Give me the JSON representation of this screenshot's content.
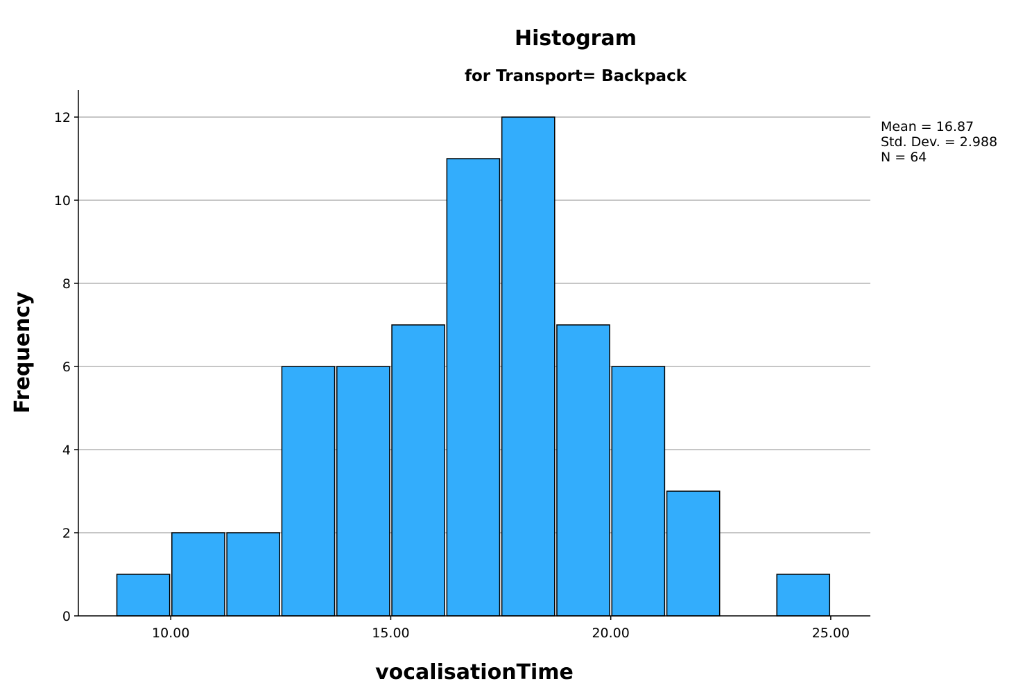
{
  "chart_data": {
    "type": "bar",
    "subtype": "histogram",
    "title": "Histogram",
    "subtitle": "for Transport= Backpack",
    "xlabel": "vocalisationTime",
    "ylabel": "Frequency",
    "bin_edges": [
      8.75,
      10.0,
      11.25,
      12.5,
      13.75,
      15.0,
      16.25,
      17.5,
      18.75,
      20.0,
      21.25,
      22.5,
      23.75,
      25.0
    ],
    "values": [
      1,
      2,
      2,
      6,
      6,
      7,
      11,
      12,
      7,
      6,
      3,
      0,
      1
    ],
    "xlim": [
      7.9,
      25.9
    ],
    "ylim": [
      0,
      12.65
    ],
    "x_ticks": [
      10,
      15,
      20,
      25
    ],
    "x_tick_labels": [
      "10.00",
      "15.00",
      "20.00",
      "25.00"
    ],
    "y_ticks": [
      0,
      2,
      4,
      6,
      8,
      10,
      12
    ],
    "y_tick_labels": [
      "0",
      "2",
      "4",
      "6",
      "8",
      "10",
      "12"
    ],
    "grid": "horizontal",
    "bar_color": "#33adfc",
    "stats": {
      "mean": "Mean = 16.87",
      "std": "Std. Dev. = 2.988",
      "n": "N = 64"
    }
  }
}
